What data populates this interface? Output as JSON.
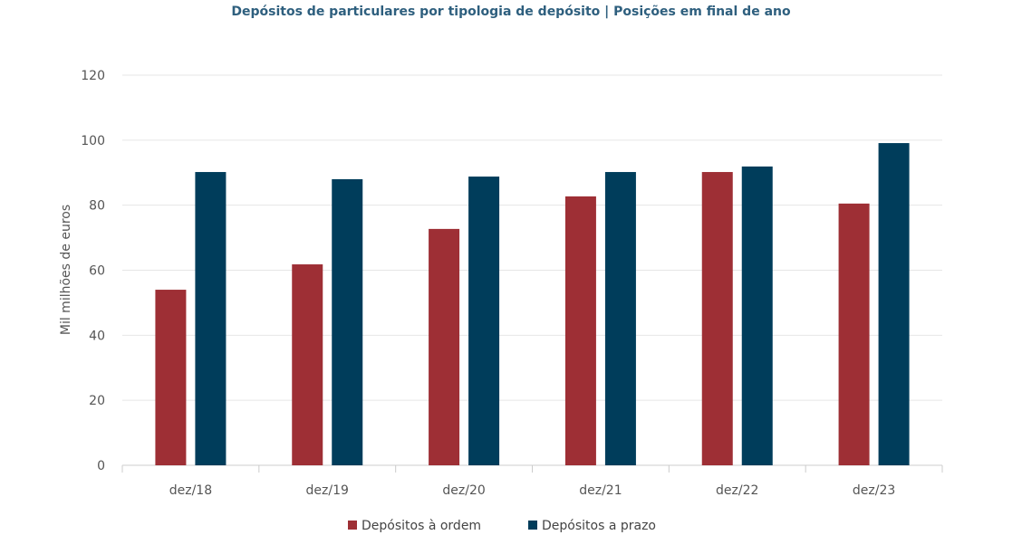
{
  "chart_data": {
    "type": "bar",
    "title": "Depósitos de particulares por tipologia de depósito | Posições em final de ano",
    "xlabel": "",
    "ylabel": "Mil milhões de euros",
    "ylim": [
      0,
      120
    ],
    "yticks": [
      0,
      20,
      40,
      60,
      80,
      100,
      120
    ],
    "grid": true,
    "legend": "bottom",
    "categories": [
      "dez/18",
      "dez/19",
      "dez/20",
      "dez/21",
      "dez/22",
      "dez/23"
    ],
    "series": [
      {
        "name": "Depósitos à ordem",
        "color": "#9e2f35",
        "values": [
          54.0,
          61.8,
          72.7,
          82.7,
          90.2,
          80.5
        ]
      },
      {
        "name": "Depósitos a prazo",
        "color": "#003d5b",
        "values": [
          90.2,
          88.0,
          88.8,
          90.2,
          91.9,
          99.1
        ]
      }
    ]
  }
}
